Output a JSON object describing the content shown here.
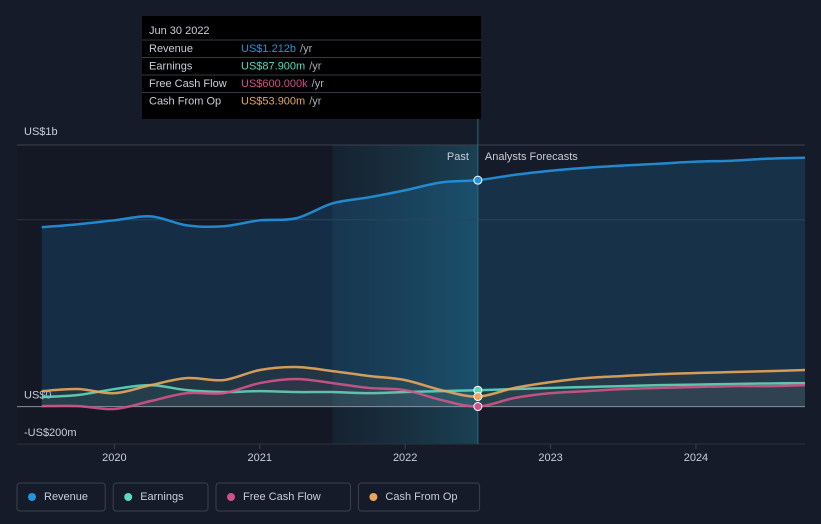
{
  "chart_data": {
    "type": "line",
    "x": [
      2019.5,
      2019.75,
      2020,
      2020.25,
      2020.5,
      2020.75,
      2021,
      2021.25,
      2021.5,
      2021.75,
      2022,
      2022.25,
      2022.5,
      2022.75,
      2023,
      2023.25,
      2023.5,
      2023.75,
      2024,
      2024.25,
      2024.5,
      2024.75
    ],
    "xlim": [
      2019.33,
      2024.75
    ],
    "xticks": [
      2020,
      2021,
      2022,
      2023,
      2024
    ],
    "ylim": [
      -200,
      1400
    ],
    "yticks": [
      {
        "value": -200,
        "label": "-US$200m"
      },
      {
        "value": 0,
        "label": "US$0"
      },
      {
        "value": 1000,
        "label": "US$1b"
      }
    ],
    "past_label": "Past",
    "forecast_label": "Analysts Forecasts",
    "past_start": 2021.5,
    "present": 2022.5,
    "series": [
      {
        "name": "Revenue",
        "color": "#2394df",
        "area": true,
        "values": [
          960,
          976,
          997,
          1018,
          970,
          965,
          997,
          1008,
          1088,
          1120,
          1158,
          1200,
          1212,
          1240,
          1262,
          1278,
          1290,
          1300,
          1311,
          1316,
          1327,
          1332
        ]
      },
      {
        "name": "Earnings",
        "color": "#5ad8c0",
        "values": [
          51,
          62,
          94,
          115,
          88,
          78,
          83,
          78,
          78,
          72,
          78,
          83,
          87.9,
          94,
          100,
          105,
          110,
          115,
          118,
          121,
          124,
          126
        ]
      },
      {
        "name": "Free Cash Flow",
        "color": "#d0508a",
        "values": [
          3,
          3,
          -13,
          30,
          72,
          72,
          126,
          148,
          126,
          100,
          88,
          35,
          0.6,
          46,
          72,
          83,
          94,
          100,
          105,
          110,
          110,
          115
        ]
      },
      {
        "name": "Cash From Op",
        "color": "#e8a75a",
        "values": [
          83,
          94,
          72,
          115,
          153,
          142,
          196,
          212,
          190,
          164,
          142,
          88,
          53.9,
          100,
          131,
          153,
          164,
          174,
          180,
          185,
          190,
          196
        ]
      }
    ],
    "tooltip": {
      "title": "Jun 30 2022",
      "rows": [
        {
          "label": "Revenue",
          "value": "US$1.212b",
          "unit": "/yr"
        },
        {
          "label": "Earnings",
          "value": "US$87.900m",
          "unit": "/yr"
        },
        {
          "label": "Free Cash Flow",
          "value": "US$600.000k",
          "unit": "/yr"
        },
        {
          "label": "Cash From Op",
          "value": "US$53.900m",
          "unit": "/yr"
        }
      ]
    }
  }
}
